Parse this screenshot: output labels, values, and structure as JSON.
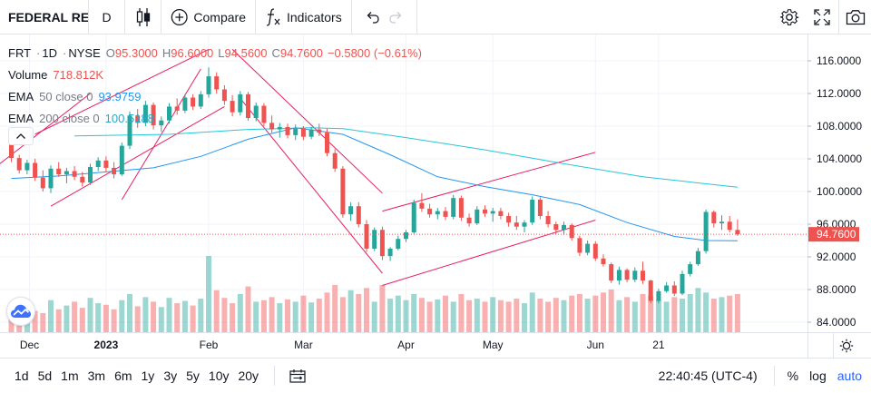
{
  "toolbar": {
    "symbol": "FEDERAL RE",
    "interval": "D",
    "compare_label": "Compare",
    "indicators_label": "Indicators"
  },
  "legend": {
    "symbol": "FRT",
    "interval": "1D",
    "exchange": "NYSE",
    "open_key": "O",
    "open": "95.3000",
    "high_key": "H",
    "high": "96.6000",
    "low_key": "L",
    "low": "94.5600",
    "close_key": "C",
    "close": "94.7600",
    "change": "−0.5800 (−0.61%)",
    "volume_label": "Volume",
    "volume": "718.812K",
    "ema1_label": "EMA",
    "ema1_params": "50 close 0",
    "ema1_value": "93.9759",
    "ema2_label": "EMA",
    "ema2_params": "200 close 0",
    "ema2_value": "100.5188"
  },
  "price_axis": {
    "ticks": [
      "116.0000",
      "112.0000",
      "108.0000",
      "104.0000",
      "100.0000",
      "96.0000",
      "92.0000",
      "88.0000",
      "84.0000"
    ],
    "last_price_label": "94.7600"
  },
  "time_axis": {
    "labels": [
      "Dec",
      "2023",
      "Feb",
      "Mar",
      "Apr",
      "May",
      "Jun",
      "21"
    ]
  },
  "bottombar": {
    "ranges": [
      "1d",
      "5d",
      "1m",
      "3m",
      "6m",
      "1y",
      "3y",
      "5y",
      "10y",
      "20y"
    ],
    "time": "22:40:45 (UTC-4)",
    "percent_label": "%",
    "log_label": "log",
    "auto_label": "auto"
  },
  "colors": {
    "up": "#26a69a",
    "down": "#ef5350",
    "ema50": "#2196f3",
    "ema200": "#26c6da",
    "trendline": "#e91e63",
    "accent": "#2962ff"
  },
  "chart_data": {
    "type": "candlestick",
    "symbol": "FRT",
    "interval": "1D",
    "ylim": [
      82.3,
      117.5
    ],
    "ohlc": [
      [
        106.4,
        106.9,
        103.6,
        104.1
      ],
      [
        104.1,
        104.5,
        102.2,
        102.6
      ],
      [
        102.6,
        103.9,
        102.1,
        103.5
      ],
      [
        103.5,
        104.0,
        101.3,
        101.7
      ],
      [
        101.7,
        102.6,
        100.0,
        100.4
      ],
      [
        100.4,
        103.2,
        99.8,
        102.8
      ],
      [
        102.8,
        103.6,
        101.8,
        102.1
      ],
      [
        102.1,
        102.9,
        101.0,
        102.5
      ],
      [
        102.5,
        103.1,
        101.4,
        101.8
      ],
      [
        101.8,
        102.4,
        100.6,
        101.1
      ],
      [
        101.1,
        103.4,
        100.8,
        103.0
      ],
      [
        103.0,
        104.2,
        102.5,
        103.8
      ],
      [
        103.8,
        104.3,
        102.4,
        102.9
      ],
      [
        102.9,
        103.6,
        101.6,
        102.1
      ],
      [
        102.1,
        106.0,
        101.9,
        105.6
      ],
      [
        105.6,
        109.8,
        105.2,
        109.3
      ],
      [
        109.3,
        110.1,
        107.8,
        108.4
      ],
      [
        108.4,
        111.1,
        108.0,
        110.6
      ],
      [
        110.6,
        110.9,
        107.6,
        108.1
      ],
      [
        108.1,
        109.2,
        107.3,
        108.7
      ],
      [
        108.7,
        110.8,
        108.3,
        110.4
      ],
      [
        110.4,
        111.4,
        109.4,
        109.9
      ],
      [
        109.9,
        111.9,
        109.6,
        111.5
      ],
      [
        111.5,
        111.9,
        110.0,
        110.4
      ],
      [
        110.4,
        112.3,
        110.1,
        111.9
      ],
      [
        111.9,
        115.2,
        111.5,
        114.1
      ],
      [
        114.1,
        114.6,
        112.0,
        112.5
      ],
      [
        112.5,
        113.0,
        110.6,
        111.1
      ],
      [
        111.1,
        111.8,
        109.2,
        109.7
      ],
      [
        109.7,
        112.3,
        109.3,
        111.9
      ],
      [
        111.9,
        112.2,
        108.7,
        109.0
      ],
      [
        109.0,
        110.9,
        108.6,
        110.5
      ],
      [
        110.5,
        110.8,
        108.0,
        108.4
      ],
      [
        108.4,
        109.3,
        107.2,
        107.6
      ],
      [
        107.6,
        108.4,
        106.6,
        107.9
      ],
      [
        107.9,
        108.3,
        106.5,
        106.9
      ],
      [
        106.9,
        108.2,
        106.3,
        107.7
      ],
      [
        107.7,
        108.0,
        106.3,
        106.7
      ],
      [
        106.7,
        107.9,
        106.4,
        107.6
      ],
      [
        107.6,
        108.3,
        106.8,
        107.2
      ],
      [
        107.2,
        107.7,
        104.3,
        104.7
      ],
      [
        104.7,
        105.2,
        102.4,
        102.8
      ],
      [
        102.8,
        103.1,
        96.8,
        97.2
      ],
      [
        97.2,
        98.7,
        96.4,
        98.2
      ],
      [
        98.2,
        98.7,
        95.6,
        96.0
      ],
      [
        96.0,
        96.5,
        92.6,
        93.0
      ],
      [
        93.0,
        95.6,
        92.7,
        95.3
      ],
      [
        95.3,
        95.7,
        91.6,
        92.1
      ],
      [
        92.1,
        93.2,
        91.5,
        93.0
      ],
      [
        93.0,
        94.6,
        92.8,
        94.2
      ],
      [
        94.2,
        95.3,
        93.8,
        95.0
      ],
      [
        95.0,
        99.0,
        94.8,
        98.6
      ],
      [
        98.6,
        99.8,
        97.5,
        97.9
      ],
      [
        97.9,
        98.5,
        96.8,
        97.2
      ],
      [
        97.2,
        98.0,
        96.6,
        97.6
      ],
      [
        97.6,
        98.1,
        96.5,
        96.9
      ],
      [
        96.9,
        99.6,
        96.6,
        99.2
      ],
      [
        99.2,
        99.5,
        96.4,
        96.8
      ],
      [
        96.8,
        97.3,
        95.7,
        96.1
      ],
      [
        96.1,
        98.2,
        95.9,
        97.8
      ],
      [
        97.8,
        98.3,
        96.9,
        97.3
      ],
      [
        97.3,
        98.0,
        96.3,
        97.6
      ],
      [
        97.6,
        98.0,
        96.6,
        97.0
      ],
      [
        97.0,
        97.4,
        95.7,
        96.2
      ],
      [
        96.2,
        97.0,
        95.3,
        95.7
      ],
      [
        95.7,
        96.5,
        95.0,
        96.2
      ],
      [
        96.2,
        99.4,
        95.9,
        99.0
      ],
      [
        99.0,
        99.3,
        96.6,
        97.0
      ],
      [
        97.0,
        97.6,
        95.6,
        96.0
      ],
      [
        96.0,
        96.3,
        94.8,
        95.3
      ],
      [
        95.3,
        96.3,
        94.7,
        95.9
      ],
      [
        95.9,
        96.1,
        94.0,
        94.3
      ],
      [
        94.3,
        94.6,
        92.1,
        92.5
      ],
      [
        92.5,
        94.0,
        92.2,
        93.6
      ],
      [
        93.6,
        93.9,
        91.5,
        91.8
      ],
      [
        91.8,
        92.3,
        90.8,
        91.1
      ],
      [
        91.1,
        91.3,
        88.8,
        89.1
      ],
      [
        89.1,
        90.8,
        88.6,
        90.4
      ],
      [
        90.4,
        90.6,
        88.9,
        89.2
      ],
      [
        89.2,
        90.7,
        88.9,
        90.3
      ],
      [
        90.3,
        91.4,
        88.7,
        89.1
      ],
      [
        89.1,
        89.2,
        86.3,
        86.6
      ],
      [
        86.6,
        88.1,
        86.3,
        87.8
      ],
      [
        87.8,
        88.9,
        87.6,
        88.5
      ],
      [
        88.5,
        89.0,
        87.2,
        87.5
      ],
      [
        87.5,
        90.3,
        87.3,
        89.9
      ],
      [
        89.9,
        91.4,
        89.6,
        91.1
      ],
      [
        91.1,
        93.1,
        90.9,
        92.7
      ],
      [
        92.7,
        97.8,
        92.4,
        97.5
      ],
      [
        97.5,
        97.7,
        95.6,
        96.1
      ],
      [
        96.1,
        97.1,
        95.3,
        96.3
      ],
      [
        96.3,
        97.0,
        95.0,
        95.3
      ],
      [
        95.3,
        96.6,
        94.56,
        94.76
      ]
    ],
    "volume_relative": [
      0.35,
      0.4,
      0.3,
      0.28,
      0.25,
      0.42,
      0.3,
      0.35,
      0.4,
      0.32,
      0.45,
      0.38,
      0.36,
      0.3,
      0.42,
      0.5,
      0.34,
      0.46,
      0.4,
      0.33,
      0.45,
      0.38,
      0.41,
      0.35,
      0.44,
      1.0,
      0.55,
      0.45,
      0.38,
      0.5,
      0.6,
      0.4,
      0.42,
      0.46,
      0.38,
      0.43,
      0.4,
      0.48,
      0.39,
      0.44,
      0.52,
      0.62,
      0.46,
      0.55,
      0.5,
      0.58,
      0.4,
      0.62,
      0.44,
      0.48,
      0.42,
      0.5,
      0.45,
      0.4,
      0.43,
      0.48,
      0.4,
      0.5,
      0.42,
      0.44,
      0.4,
      0.46,
      0.42,
      0.4,
      0.44,
      0.38,
      0.52,
      0.44,
      0.4,
      0.45,
      0.42,
      0.48,
      0.5,
      0.44,
      0.48,
      0.52,
      0.56,
      0.42,
      0.46,
      0.4,
      0.5,
      0.48,
      0.42,
      0.4,
      0.46,
      0.44,
      0.5,
      0.58,
      0.52,
      0.44,
      0.46,
      0.48,
      0.5
    ],
    "ema50": [
      [
        0,
        101.6
      ],
      [
        6,
        101.9
      ],
      [
        12,
        102.4
      ],
      [
        18,
        102.9
      ],
      [
        24,
        104.3
      ],
      [
        30,
        106.4
      ],
      [
        36,
        107.8
      ],
      [
        42,
        107.0
      ],
      [
        48,
        104.5
      ],
      [
        54,
        101.8
      ],
      [
        60,
        100.6
      ],
      [
        66,
        99.6
      ],
      [
        72,
        98.4
      ],
      [
        78,
        96.2
      ],
      [
        84,
        94.5
      ],
      [
        88,
        94.0
      ],
      [
        92,
        93.98
      ]
    ],
    "ema200": [
      [
        8,
        106.8
      ],
      [
        20,
        107.0
      ],
      [
        30,
        107.6
      ],
      [
        38,
        107.8
      ],
      [
        42,
        107.7
      ],
      [
        50,
        106.6
      ],
      [
        60,
        105.1
      ],
      [
        70,
        103.4
      ],
      [
        80,
        101.8
      ],
      [
        92,
        100.52
      ]
    ],
    "trendlines": [
      [
        [
          -2,
          103.0
        ],
        [
          10,
          112.0
        ]
      ],
      [
        [
          14,
          99.0
        ],
        [
          24,
          115.0
        ]
      ],
      [
        [
          3,
          107.0
        ],
        [
          25,
          117.4
        ]
      ],
      [
        [
          5,
          98.2
        ],
        [
          27,
          110.4
        ]
      ],
      [
        [
          28,
          117.4
        ],
        [
          47,
          99.8
        ]
      ],
      [
        [
          29,
          111.4
        ],
        [
          47,
          90.0
        ]
      ],
      [
        [
          47,
          97.6
        ],
        [
          74,
          104.8
        ]
      ],
      [
        [
          47,
          88.5
        ],
        [
          74,
          96.5
        ]
      ]
    ],
    "last_price": 94.76,
    "time_labels": [
      {
        "text": "Dec",
        "bar": 0,
        "year": false
      },
      {
        "text": "2023",
        "bar": 12,
        "year": true
      },
      {
        "text": "Feb",
        "bar": 25,
        "year": false
      },
      {
        "text": "Mar",
        "bar": 37,
        "year": false
      },
      {
        "text": "Apr",
        "bar": 50,
        "year": false
      },
      {
        "text": "May",
        "bar": 61,
        "year": false
      },
      {
        "text": "Jun",
        "bar": 74,
        "year": false
      },
      {
        "text": "21",
        "bar": 82,
        "year": false
      }
    ]
  }
}
